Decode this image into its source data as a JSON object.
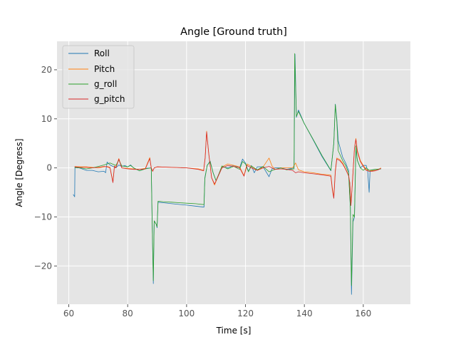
{
  "chart_data": {
    "type": "line",
    "title": "Angle [Ground truth]",
    "xlabel": "Time [s]",
    "ylabel": "Angle [Degress]",
    "xlim": [
      56,
      176
    ],
    "ylim": [
      -27.8,
      25.8
    ],
    "xticks": [
      60,
      80,
      100,
      120,
      140,
      160
    ],
    "yticks": [
      -20,
      -10,
      0,
      10,
      20
    ],
    "xtick_labels": [
      "60",
      "80",
      "100",
      "120",
      "140",
      "160"
    ],
    "ytick_labels": [
      "−20",
      "−10",
      "0",
      "10",
      "20"
    ],
    "grid": true,
    "legend_position": "top-left",
    "colors": {
      "plot_background": "#e5e5e5",
      "grid": "#ffffff",
      "Roll": "#1f77b4",
      "Pitch": "#ff7f0e",
      "g_roll": "#2ca02c",
      "g_pitch": "#d62728"
    },
    "series": [
      {
        "name": "Roll",
        "points": [
          [
            61.5,
            -5.4
          ],
          [
            62,
            -5.9
          ],
          [
            62.1,
            0.2
          ],
          [
            64,
            -0.1
          ],
          [
            66,
            -0.5
          ],
          [
            68,
            -0.5
          ],
          [
            70,
            -0.8
          ],
          [
            72,
            -0.7
          ],
          [
            72.5,
            -1.0
          ],
          [
            73,
            1.2
          ],
          [
            74,
            0.6
          ],
          [
            76,
            0.0
          ],
          [
            77,
            0.6
          ],
          [
            78,
            0.3
          ],
          [
            79,
            0.5
          ],
          [
            80,
            0.2
          ],
          [
            81,
            0.6
          ],
          [
            82,
            0.0
          ],
          [
            84,
            -0.6
          ],
          [
            86,
            -0.1
          ],
          [
            88,
            0.0
          ],
          [
            88.3,
            -10.5
          ],
          [
            88.7,
            -23.6
          ],
          [
            89,
            -10.8
          ],
          [
            89.7,
            -11.5
          ],
          [
            90,
            -12.2
          ],
          [
            90.3,
            -7.0
          ],
          [
            92,
            -7.1
          ],
          [
            95,
            -7.3
          ],
          [
            100,
            -7.6
          ],
          [
            103,
            -7.8
          ],
          [
            105.9,
            -8.0
          ],
          [
            106.2,
            -2.0
          ],
          [
            107,
            0.5
          ],
          [
            108,
            1.4
          ],
          [
            109,
            -1.0
          ],
          [
            110,
            -2.6
          ],
          [
            111,
            -1.2
          ],
          [
            112,
            0.2
          ],
          [
            114,
            0.0
          ],
          [
            116,
            0.5
          ],
          [
            118,
            0.0
          ],
          [
            119,
            1.8
          ],
          [
            120,
            1.0
          ],
          [
            121,
            -0.7
          ],
          [
            122,
            0.5
          ],
          [
            123,
            -1.0
          ],
          [
            124,
            0.2
          ],
          [
            126,
            0.2
          ],
          [
            128,
            -1.8
          ],
          [
            129,
            -0.2
          ],
          [
            130,
            0.0
          ],
          [
            132,
            0.0
          ],
          [
            134,
            -0.3
          ],
          [
            136.5,
            0.0
          ],
          [
            136.8,
            23.2
          ],
          [
            137.3,
            10.3
          ],
          [
            138,
            11.8
          ],
          [
            140,
            9.0
          ],
          [
            143,
            5.7
          ],
          [
            146,
            2.3
          ],
          [
            149,
            -0.6
          ],
          [
            150,
            5.0
          ],
          [
            150.5,
            13.0
          ],
          [
            151,
            10.0
          ],
          [
            151.5,
            5.5
          ],
          [
            153,
            2.2
          ],
          [
            154,
            1.0
          ],
          [
            155,
            -0.5
          ],
          [
            155.6,
            -8.0
          ],
          [
            156,
            -25.8
          ],
          [
            156.5,
            -11.0
          ],
          [
            157,
            -10.1
          ],
          [
            157.5,
            4.0
          ],
          [
            158,
            1.5
          ],
          [
            159,
            0.0
          ],
          [
            160,
            0.5
          ],
          [
            161,
            0.5
          ],
          [
            161.5,
            -0.7
          ],
          [
            162,
            -5.0
          ],
          [
            162.3,
            -0.5
          ],
          [
            164,
            -0.5
          ],
          [
            166,
            -0.2
          ]
        ]
      },
      {
        "name": "Pitch",
        "points": [
          [
            62,
            0.3
          ],
          [
            64,
            0.2
          ],
          [
            66,
            0.2
          ],
          [
            68,
            0.1
          ],
          [
            70,
            0.0
          ],
          [
            72,
            0.2
          ],
          [
            73,
            0.3
          ],
          [
            74,
            0.1
          ],
          [
            75,
            -2.9
          ],
          [
            75.5,
            0.4
          ],
          [
            76,
            0.1
          ],
          [
            77,
            1.9
          ],
          [
            78,
            0.0
          ],
          [
            80,
            -0.1
          ],
          [
            82,
            -0.2
          ],
          [
            84,
            -0.3
          ],
          [
            86,
            -0.1
          ],
          [
            87.5,
            2.1
          ],
          [
            88,
            0.0
          ],
          [
            88.5,
            -0.7
          ],
          [
            89,
            0.0
          ],
          [
            90,
            0.2
          ],
          [
            95,
            0.1
          ],
          [
            100,
            0.0
          ],
          [
            104,
            -0.2
          ],
          [
            105.8,
            -0.5
          ],
          [
            106.3,
            2.0
          ],
          [
            106.8,
            7.5
          ],
          [
            107.5,
            3.0
          ],
          [
            108.5,
            -2.0
          ],
          [
            109.5,
            -3.5
          ],
          [
            110.5,
            -2.0
          ],
          [
            112,
            0.2
          ],
          [
            114,
            0.8
          ],
          [
            116,
            0.5
          ],
          [
            118,
            0.2
          ],
          [
            119.5,
            -1.6
          ],
          [
            120.5,
            0.8
          ],
          [
            122,
            0.3
          ],
          [
            124,
            -0.5
          ],
          [
            126,
            0.2
          ],
          [
            128,
            2.0
          ],
          [
            129,
            0.4
          ],
          [
            130,
            -0.3
          ],
          [
            132,
            0.0
          ],
          [
            134,
            0.0
          ],
          [
            136,
            0.0
          ],
          [
            137,
            1.0
          ],
          [
            138,
            -0.4
          ],
          [
            140,
            -0.8
          ],
          [
            143,
            -1.0
          ],
          [
            146,
            -1.3
          ],
          [
            148,
            -1.4
          ],
          [
            149,
            -1.5
          ],
          [
            149.5,
            -4.2
          ],
          [
            150,
            -6.0
          ],
          [
            150.5,
            -0.5
          ],
          [
            151,
            2.0
          ],
          [
            152,
            1.7
          ],
          [
            153,
            1.0
          ],
          [
            154,
            -0.2
          ],
          [
            155,
            -1.5
          ],
          [
            155.4,
            -3.0
          ],
          [
            155.8,
            -7.5
          ],
          [
            156.3,
            -3.0
          ],
          [
            157,
            4.0
          ],
          [
            157.5,
            6.0
          ],
          [
            158,
            3.5
          ],
          [
            159,
            1.5
          ],
          [
            160,
            0.5
          ],
          [
            161,
            -0.3
          ],
          [
            162,
            -0.5
          ],
          [
            163,
            -0.6
          ],
          [
            164,
            -0.5
          ],
          [
            165,
            -0.4
          ],
          [
            166,
            0.0
          ]
        ]
      },
      {
        "name": "g_roll",
        "points": [
          [
            62,
            0.0
          ],
          [
            64,
            0.0
          ],
          [
            66,
            -0.2
          ],
          [
            68,
            0.0
          ],
          [
            70,
            0.3
          ],
          [
            72,
            0.6
          ],
          [
            74,
            1.0
          ],
          [
            76,
            0.5
          ],
          [
            77,
            1.6
          ],
          [
            78,
            0.4
          ],
          [
            80,
            0.2
          ],
          [
            81,
            0.5
          ],
          [
            82,
            0.0
          ],
          [
            84,
            -0.6
          ],
          [
            86,
            -0.2
          ],
          [
            88,
            0.0
          ],
          [
            88.3,
            -10.5
          ],
          [
            88.7,
            -23.0
          ],
          [
            89,
            -10.8
          ],
          [
            89.7,
            -11.5
          ],
          [
            90,
            -12.0
          ],
          [
            90.3,
            -6.8
          ],
          [
            92,
            -6.9
          ],
          [
            95,
            -7.0
          ],
          [
            100,
            -7.2
          ],
          [
            103,
            -7.3
          ],
          [
            105.9,
            -7.5
          ],
          [
            106.2,
            -2.2
          ],
          [
            107,
            0.5
          ],
          [
            108,
            1.3
          ],
          [
            109,
            -1.0
          ],
          [
            110,
            -2.6
          ],
          [
            111,
            -1.2
          ],
          [
            112,
            0.4
          ],
          [
            114,
            -0.2
          ],
          [
            116,
            0.3
          ],
          [
            118,
            -0.3
          ],
          [
            119,
            1.3
          ],
          [
            120,
            0.8
          ],
          [
            121,
            -0.8
          ],
          [
            122,
            0.4
          ],
          [
            124,
            -0.4
          ],
          [
            126,
            0.3
          ],
          [
            128,
            -0.8
          ],
          [
            130,
            -0.3
          ],
          [
            132,
            0.0
          ],
          [
            134,
            -0.4
          ],
          [
            136.5,
            -0.2
          ],
          [
            136.7,
            23.3
          ],
          [
            137.3,
            10.5
          ],
          [
            138,
            11.5
          ],
          [
            140,
            9.0
          ],
          [
            143,
            5.8
          ],
          [
            146,
            2.5
          ],
          [
            149,
            -0.5
          ],
          [
            150,
            5.0
          ],
          [
            150.5,
            12.9
          ],
          [
            151,
            9.5
          ],
          [
            151.5,
            3.5
          ],
          [
            153,
            1.5
          ],
          [
            154,
            0.5
          ],
          [
            155,
            -1.0
          ],
          [
            155.6,
            -8.0
          ],
          [
            156,
            -24.0
          ],
          [
            156.5,
            -9.5
          ],
          [
            157,
            -10.0
          ],
          [
            157.5,
            4.5
          ],
          [
            158,
            1.5
          ],
          [
            159,
            0.0
          ],
          [
            160,
            -0.5
          ],
          [
            161,
            0.0
          ],
          [
            162,
            -0.5
          ],
          [
            164,
            -0.3
          ],
          [
            166,
            -0.2
          ]
        ]
      },
      {
        "name": "g_pitch",
        "points": [
          [
            62,
            0.2
          ],
          [
            64,
            0.1
          ],
          [
            66,
            0.1
          ],
          [
            68,
            0.0
          ],
          [
            70,
            0.1
          ],
          [
            72,
            0.3
          ],
          [
            73,
            0.2
          ],
          [
            74,
            0.0
          ],
          [
            75,
            -3.0
          ],
          [
            75.5,
            0.3
          ],
          [
            76,
            0.0
          ],
          [
            77,
            1.8
          ],
          [
            78,
            0.0
          ],
          [
            80,
            -0.2
          ],
          [
            82,
            -0.3
          ],
          [
            84,
            -0.3
          ],
          [
            86,
            -0.2
          ],
          [
            87.5,
            1.9
          ],
          [
            88,
            0.0
          ],
          [
            88.5,
            -0.7
          ],
          [
            89,
            0.0
          ],
          [
            90,
            0.2
          ],
          [
            95,
            0.1
          ],
          [
            100,
            0.0
          ],
          [
            104,
            -0.3
          ],
          [
            105.8,
            -0.6
          ],
          [
            106.3,
            2.0
          ],
          [
            106.8,
            7.3
          ],
          [
            107.5,
            3.0
          ],
          [
            108.5,
            -2.0
          ],
          [
            109.5,
            -3.3
          ],
          [
            110.5,
            -2.0
          ],
          [
            112,
            0.0
          ],
          [
            114,
            0.5
          ],
          [
            116,
            0.3
          ],
          [
            118,
            0.0
          ],
          [
            119.5,
            -1.7
          ],
          [
            120.5,
            0.5
          ],
          [
            122,
            0.0
          ],
          [
            124,
            -0.5
          ],
          [
            126,
            0.0
          ],
          [
            128,
            0.3
          ],
          [
            129,
            0.0
          ],
          [
            130,
            -0.3
          ],
          [
            132,
            -0.2
          ],
          [
            134,
            -0.3
          ],
          [
            136,
            -0.5
          ],
          [
            137,
            -1.0
          ],
          [
            138,
            -0.8
          ],
          [
            140,
            -1.0
          ],
          [
            143,
            -1.2
          ],
          [
            146,
            -1.4
          ],
          [
            148,
            -1.6
          ],
          [
            149,
            -1.7
          ],
          [
            149.5,
            -4.5
          ],
          [
            150,
            -6.2
          ],
          [
            150.5,
            -0.8
          ],
          [
            151,
            1.8
          ],
          [
            152,
            1.5
          ],
          [
            153,
            0.8
          ],
          [
            154,
            -0.3
          ],
          [
            155,
            -1.6
          ],
          [
            155.4,
            -3.0
          ],
          [
            155.8,
            -7.7
          ],
          [
            156.3,
            -3.0
          ],
          [
            157,
            4.0
          ],
          [
            157.5,
            5.8
          ],
          [
            158,
            3.3
          ],
          [
            159,
            1.3
          ],
          [
            160,
            0.3
          ],
          [
            161,
            -0.5
          ],
          [
            162,
            -0.7
          ],
          [
            163,
            -0.7
          ],
          [
            164,
            -0.6
          ],
          [
            165,
            -0.4
          ],
          [
            166,
            -0.1
          ]
        ]
      }
    ]
  }
}
